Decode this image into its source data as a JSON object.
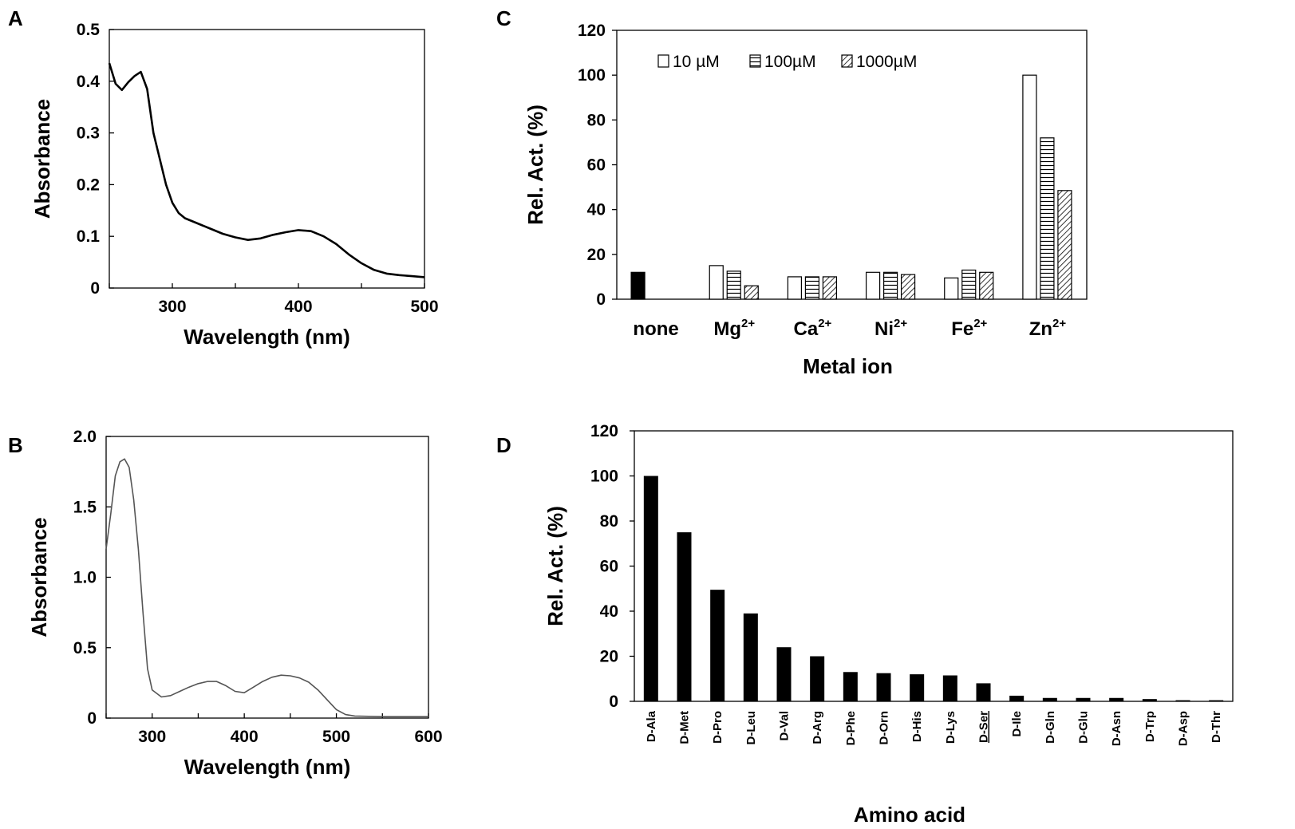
{
  "chart_data": [
    {
      "id": "A",
      "panel_label": "A",
      "type": "line",
      "xlabel": "Wavelength (nm)",
      "ylabel": "Absorbance",
      "xlim": [
        250,
        500
      ],
      "ylim": [
        0,
        0.5
      ],
      "xticks": [
        "300",
        "400",
        "500"
      ],
      "yticks": [
        "0",
        "0.1",
        "0.2",
        "0.3",
        "0.4",
        "0.5"
      ],
      "series": [
        {
          "name": "spectrum",
          "x": [
            250,
            255,
            260,
            265,
            270,
            275,
            280,
            285,
            290,
            295,
            300,
            305,
            310,
            320,
            330,
            340,
            350,
            360,
            370,
            380,
            390,
            400,
            410,
            420,
            430,
            440,
            450,
            460,
            470,
            480,
            490,
            500
          ],
          "y": [
            0.435,
            0.395,
            0.383,
            0.398,
            0.41,
            0.418,
            0.385,
            0.3,
            0.25,
            0.2,
            0.165,
            0.145,
            0.135,
            0.125,
            0.115,
            0.105,
            0.098,
            0.093,
            0.096,
            0.103,
            0.108,
            0.112,
            0.11,
            0.1,
            0.085,
            0.065,
            0.048,
            0.035,
            0.028,
            0.025,
            0.023,
            0.021
          ]
        }
      ]
    },
    {
      "id": "B",
      "panel_label": "B",
      "type": "line",
      "xlabel": "Wavelength (nm)",
      "ylabel": "Absorbance",
      "xlim": [
        250,
        600
      ],
      "ylim": [
        0,
        2.0
      ],
      "xticks": [
        "300",
        "400",
        "500",
        "600"
      ],
      "yticks": [
        "0",
        "0.5",
        "1.0",
        "1.5",
        "2.0"
      ],
      "series": [
        {
          "name": "spectrum",
          "x": [
            250,
            255,
            260,
            265,
            270,
            275,
            280,
            285,
            290,
            295,
            300,
            310,
            320,
            330,
            340,
            350,
            360,
            370,
            380,
            390,
            400,
            410,
            420,
            430,
            440,
            450,
            460,
            470,
            480,
            490,
            500,
            510,
            520,
            550,
            600
          ],
          "y": [
            1.2,
            1.45,
            1.72,
            1.82,
            1.84,
            1.78,
            1.55,
            1.2,
            0.75,
            0.35,
            0.2,
            0.15,
            0.16,
            0.19,
            0.22,
            0.245,
            0.26,
            0.26,
            0.23,
            0.19,
            0.18,
            0.22,
            0.26,
            0.29,
            0.305,
            0.3,
            0.285,
            0.255,
            0.2,
            0.13,
            0.06,
            0.025,
            0.015,
            0.01,
            0.01
          ]
        }
      ]
    },
    {
      "id": "C",
      "panel_label": "C",
      "type": "bar",
      "xlabel": "Metal ion",
      "ylabel": "Rel. Act. (%)",
      "ylim": [
        0,
        120
      ],
      "yticks": [
        "0",
        "20",
        "40",
        "60",
        "80",
        "100",
        "120"
      ],
      "categories": [
        {
          "base": "none",
          "sup": ""
        },
        {
          "base": "Mg",
          "sup": "2+"
        },
        {
          "base": "Ca",
          "sup": "2+"
        },
        {
          "base": "Ni",
          "sup": "2+"
        },
        {
          "base": "Fe",
          "sup": "2+"
        },
        {
          "base": "Zn",
          "sup": "2+"
        }
      ],
      "control": {
        "name": "none",
        "value": 12,
        "color": "#000000"
      },
      "series": [
        {
          "name": "10 µM",
          "pattern": "open",
          "values": [
            null,
            15,
            10,
            12,
            9.5,
            100
          ]
        },
        {
          "name": "100µM",
          "pattern": "horizontal-lines",
          "values": [
            null,
            12.5,
            10,
            12,
            13,
            72
          ]
        },
        {
          "name": "1000µM",
          "pattern": "diagonal-lines",
          "values": [
            null,
            6,
            10,
            11,
            12,
            48.5
          ]
        }
      ],
      "legend": [
        "10 µM",
        "100µM",
        "1000µM"
      ],
      "legend_position": "top-left"
    },
    {
      "id": "D",
      "panel_label": "D",
      "type": "bar",
      "xlabel": "Amino acid",
      "ylabel": "Rel.  Act. (%)",
      "ylim": [
        0,
        120
      ],
      "yticks": [
        "0",
        "20",
        "40",
        "60",
        "80",
        "100",
        "120"
      ],
      "categories": [
        "D-Ala",
        "D-Met",
        "D-Pro",
        "D-Leu",
        "D-Val",
        "D-Arg",
        "D-Phe",
        "D-Orn",
        "D-His",
        "D-Lys",
        "D-Ser",
        "D-Ile",
        "D-Gln",
        "D-Glu",
        "D-Asn",
        "D-Trp",
        "D-Asp",
        "D-Thr"
      ],
      "underlined_category": "D-Ser",
      "values": [
        100,
        75,
        49.5,
        39,
        24,
        20,
        13,
        12.5,
        12,
        11.5,
        8,
        2.5,
        1.5,
        1.5,
        1.5,
        1,
        0.5,
        0.5
      ],
      "color": "#000000"
    }
  ]
}
